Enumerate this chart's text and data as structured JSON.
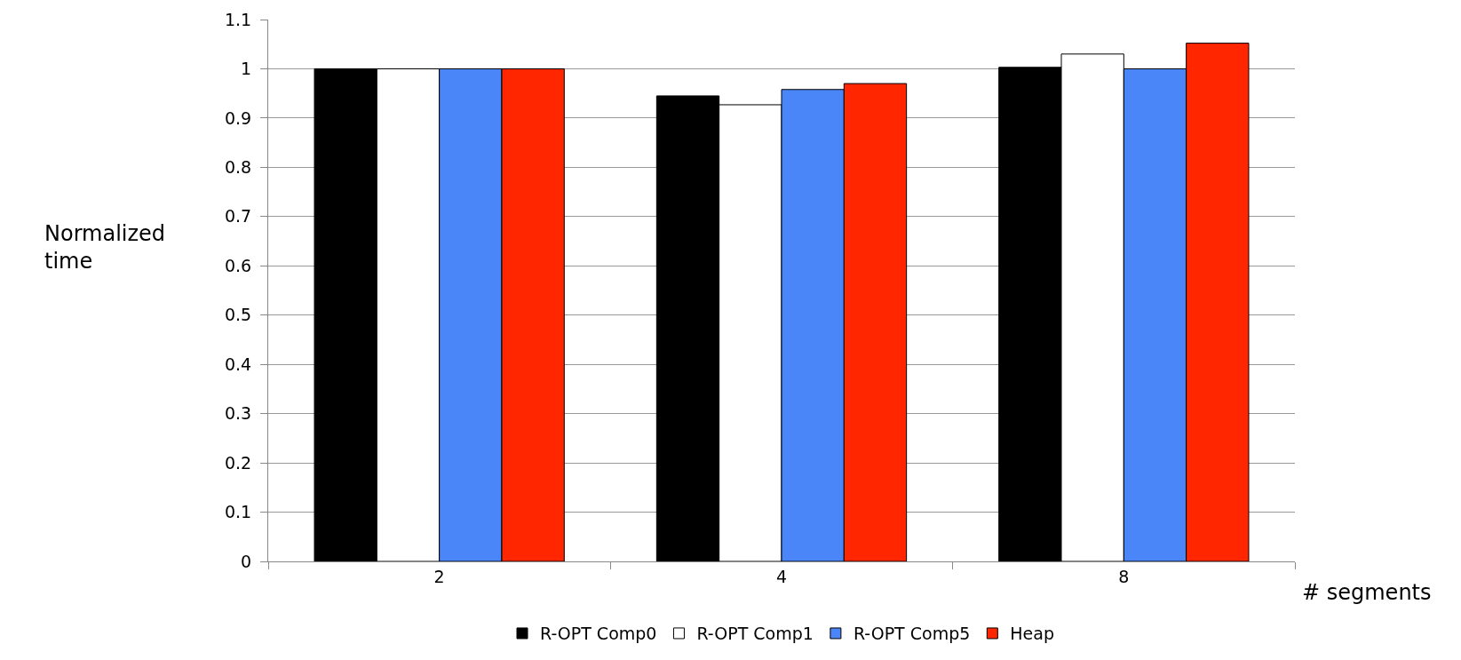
{
  "chart_data": {
    "type": "bar",
    "xlabel": "# segments",
    "ylabel": "Normalized time",
    "categories": [
      "2",
      "4",
      "8"
    ],
    "series": [
      {
        "name": "R-OPT Comp0",
        "color": "#000000",
        "values": [
          1.0,
          0.945,
          1.003
        ]
      },
      {
        "name": "R-OPT Comp1",
        "color": "#ffffff",
        "values": [
          1.0,
          0.927,
          1.03
        ]
      },
      {
        "name": "R-OPT Comp5",
        "color": "#4a86f7",
        "values": [
          1.0,
          0.958,
          1.0
        ]
      },
      {
        "name": "Heap",
        "color": "#ff2600",
        "values": [
          1.0,
          0.97,
          1.052
        ]
      }
    ],
    "ylim": [
      0,
      1.1
    ],
    "yticks": [
      0,
      0.1,
      0.2,
      0.3,
      0.4,
      0.5,
      0.6,
      0.7,
      0.8,
      0.9,
      1,
      1.1
    ],
    "grid": "y",
    "legend": "bottom"
  }
}
